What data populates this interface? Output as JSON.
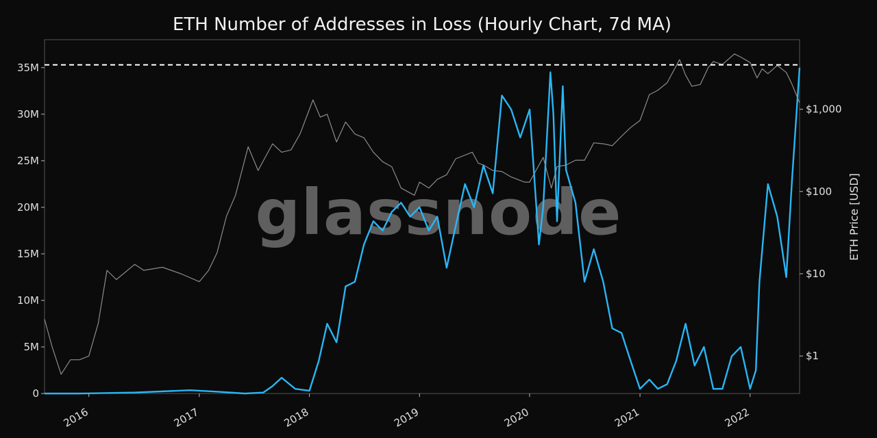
{
  "chart_data": {
    "type": "line",
    "title": "ETH Number of Addresses in Loss (Hourly Chart, 7d MA)",
    "watermark": "glassnode",
    "x_ticks": [
      "2016",
      "2017",
      "2018",
      "2019",
      "2020",
      "2021",
      "2022"
    ],
    "x_range": [
      "2015-08-07",
      "2022-06-14"
    ],
    "y_left": {
      "ticks": [
        "0",
        "5M",
        "10M",
        "15M",
        "20M",
        "25M",
        "30M",
        "35M"
      ],
      "range": [
        0,
        38000000
      ]
    },
    "y_right": {
      "label": "ETH Price [USD]",
      "scale": "log",
      "ticks": [
        "$1",
        "$10",
        "$100",
        "$1,000"
      ],
      "range": [
        0.35,
        7000
      ]
    },
    "reference_line": {
      "value": 35300000,
      "style": "dashed",
      "color": "#ffffff"
    },
    "colors": {
      "addresses_line": "#29b6f6",
      "price_line": "#8c8c8c",
      "background": "#0b0b0b",
      "plot_border": "#555555"
    },
    "series": [
      {
        "axis": "left",
        "x": [
          "2015-08-07",
          "2015-12-01",
          "2016-06-01",
          "2016-12-01",
          "2017-03-01",
          "2017-06-01",
          "2017-08-01",
          "2017-09-01",
          "2017-10-01",
          "2017-11-15",
          "2018-01-01",
          "2018-02-01",
          "2018-03-01",
          "2018-04-01",
          "2018-05-01",
          "2018-06-01",
          "2018-07-01",
          "2018-08-01",
          "2018-09-01",
          "2018-10-01",
          "2018-11-01",
          "2018-12-01",
          "2019-01-01",
          "2019-02-01",
          "2019-03-01",
          "2019-04-01",
          "2019-05-01",
          "2019-06-01",
          "2019-07-01",
          "2019-08-01",
          "2019-09-01",
          "2019-10-01",
          "2019-11-01",
          "2019-12-01",
          "2020-01-01",
          "2020-02-01",
          "2020-02-15",
          "2020-03-10",
          "2020-03-20",
          "2020-04-01",
          "2020-04-20",
          "2020-05-01",
          "2020-06-01",
          "2020-07-01",
          "2020-08-01",
          "2020-09-01",
          "2020-10-01",
          "2020-11-01",
          "2020-12-01",
          "2021-01-01",
          "2021-02-01",
          "2021-03-01",
          "2021-04-01",
          "2021-05-01",
          "2021-06-01",
          "2021-07-01",
          "2021-08-01",
          "2021-09-01",
          "2021-10-01",
          "2021-11-01",
          "2021-12-01",
          "2022-01-01",
          "2022-01-20",
          "2022-02-01",
          "2022-03-01",
          "2022-04-01",
          "2022-05-01",
          "2022-05-20",
          "2022-06-14"
        ],
        "y": [
          0,
          0,
          100000,
          350000,
          200000,
          0,
          100000,
          800000,
          1700000,
          500000,
          300000,
          3500000,
          7500000,
          5500000,
          11500000,
          12000000,
          16000000,
          18500000,
          17500000,
          19500000,
          20500000,
          19000000,
          20000000,
          17500000,
          19000000,
          13500000,
          18000000,
          22500000,
          20000000,
          24500000,
          21500000,
          32000000,
          30500000,
          27500000,
          30500000,
          16000000,
          20000000,
          34500000,
          30000000,
          18500000,
          33000000,
          24000000,
          20500000,
          12000000,
          15500000,
          12000000,
          7000000,
          6500000,
          3500000,
          500000,
          1500000,
          500000,
          1000000,
          3500000,
          7500000,
          3000000,
          5000000,
          500000,
          500000,
          4000000,
          5000000,
          500000,
          2500000,
          12000000,
          22500000,
          19000000,
          12500000,
          23000000,
          35000000
        ]
      },
      {
        "axis": "right",
        "x": [
          "2015-08-07",
          "2015-09-01",
          "2015-10-01",
          "2015-11-01",
          "2015-12-01",
          "2016-01-01",
          "2016-02-01",
          "2016-03-01",
          "2016-04-01",
          "2016-06-01",
          "2016-07-01",
          "2016-09-01",
          "2016-11-01",
          "2017-01-01",
          "2017-02-01",
          "2017-03-01",
          "2017-04-01",
          "2017-05-01",
          "2017-06-12",
          "2017-07-15",
          "2017-09-01",
          "2017-10-01",
          "2017-11-01",
          "2017-12-01",
          "2018-01-13",
          "2018-02-06",
          "2018-03-01",
          "2018-04-01",
          "2018-05-01",
          "2018-06-01",
          "2018-07-01",
          "2018-08-01",
          "2018-09-01",
          "2018-10-01",
          "2018-11-01",
          "2018-12-15",
          "2019-01-01",
          "2019-02-01",
          "2019-03-01",
          "2019-04-01",
          "2019-05-01",
          "2019-06-25",
          "2019-07-15",
          "2019-08-01",
          "2019-09-01",
          "2019-10-01",
          "2019-11-01",
          "2019-12-15",
          "2020-01-01",
          "2020-02-15",
          "2020-03-13",
          "2020-04-01",
          "2020-05-01",
          "2020-06-01",
          "2020-07-01",
          "2020-08-01",
          "2020-09-01",
          "2020-10-01",
          "2020-11-01",
          "2020-12-01",
          "2021-01-01",
          "2021-02-01",
          "2021-03-01",
          "2021-04-01",
          "2021-05-12",
          "2021-06-01",
          "2021-06-22",
          "2021-07-20",
          "2021-08-15",
          "2021-09-01",
          "2021-10-01",
          "2021-11-10",
          "2021-12-01",
          "2022-01-01",
          "2022-01-24",
          "2022-02-10",
          "2022-03-01",
          "2022-04-01",
          "2022-05-01",
          "2022-05-20",
          "2022-06-14"
        ],
        "y": [
          2.8,
          1.3,
          0.6,
          0.9,
          0.9,
          1.0,
          2.5,
          11.0,
          8.5,
          13.0,
          11.0,
          12.0,
          10.0,
          8.0,
          11.0,
          18.0,
          50.0,
          90.0,
          350.0,
          180.0,
          380.0,
          300.0,
          320.0,
          500.0,
          1300.0,
          800.0,
          870.0,
          400.0,
          700.0,
          500.0,
          450.0,
          300.0,
          230.0,
          200.0,
          110.0,
          90.0,
          130.0,
          110.0,
          140.0,
          160.0,
          250.0,
          300.0,
          220.0,
          210.0,
          180.0,
          175.0,
          150.0,
          130.0,
          130.0,
          260.0,
          110.0,
          200.0,
          210.0,
          240.0,
          240.0,
          390.0,
          380.0,
          360.0,
          470.0,
          600.0,
          730.0,
          1500.0,
          1700.0,
          2100.0,
          4000.0,
          2600.0,
          1900.0,
          2000.0,
          3200.0,
          3800.0,
          3500.0,
          4700.0,
          4300.0,
          3700.0,
          2400.0,
          3100.0,
          2700.0,
          3400.0,
          2800.0,
          2000.0,
          1200.0
        ]
      }
    ]
  }
}
